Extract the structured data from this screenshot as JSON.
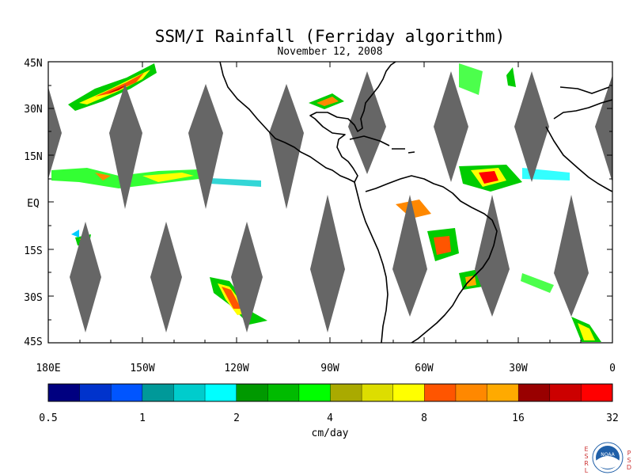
{
  "title": "SSM/I Rainfall (Ferriday algorithm)",
  "subtitle": "November 12, 2008",
  "lat_labels": [
    "45N",
    "30N",
    "15N",
    "EQ",
    "15S",
    "30S",
    "45S"
  ],
  "lon_labels": [
    "180E",
    "150W",
    "120W",
    "90W",
    "60W",
    "30W",
    "0"
  ],
  "colorbar": {
    "unit_label": "cm/day",
    "tick_labels": [
      "0.5",
      "1",
      "2",
      "4",
      "8",
      "16",
      "32"
    ],
    "colors": [
      "#000080",
      "#0033cc",
      "#0055ff",
      "#009999",
      "#00cccc",
      "#00ffff",
      "#009900",
      "#00bb00",
      "#00ff00",
      "#aaaa00",
      "#dddd00",
      "#ffff00",
      "#ff5500",
      "#ff8800",
      "#ffaa00",
      "#990000",
      "#cc0000",
      "#ff0000"
    ]
  },
  "logo": {
    "letters_left": [
      "E",
      "S",
      "R",
      "L"
    ],
    "letters_right": [
      "P",
      "S",
      "D"
    ],
    "badge_text": "NOAA"
  },
  "map_colors": {
    "swath_gap": "#666666",
    "coastline": "#000000"
  }
}
